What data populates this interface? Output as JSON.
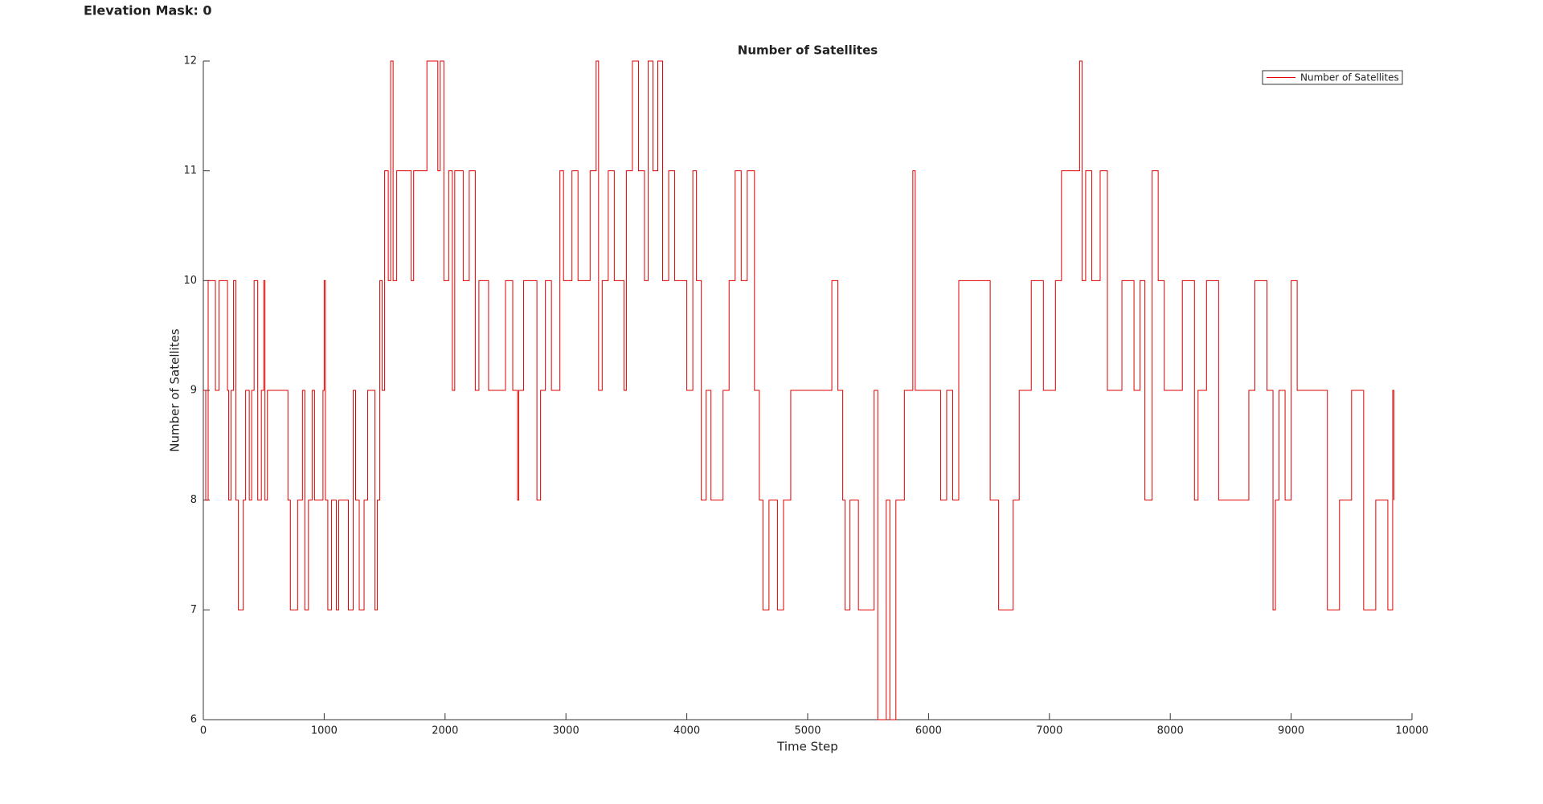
{
  "header": {
    "title": "Elevation Mask: 0"
  },
  "chart_data": {
    "type": "line",
    "title": "Number of Satellites",
    "xlabel": "Time Step",
    "ylabel": "Number of Satellites",
    "drawstyle": "steps-post",
    "legend": "upper right",
    "xlim": [
      0,
      10000
    ],
    "xticks": [
      0,
      1000,
      2000,
      3000,
      4000,
      5000,
      6000,
      7000,
      8000,
      9000,
      10000
    ],
    "ylim": [
      6,
      12
    ],
    "yticks": [
      6,
      7,
      8,
      9,
      10,
      11,
      12
    ],
    "x": [
      0,
      20,
      40,
      100,
      130,
      200,
      210,
      230,
      250,
      270,
      290,
      330,
      350,
      380,
      400,
      420,
      450,
      480,
      500,
      510,
      530,
      700,
      720,
      780,
      820,
      840,
      870,
      900,
      920,
      990,
      1000,
      1010,
      1030,
      1060,
      1100,
      1120,
      1200,
      1240,
      1260,
      1290,
      1330,
      1360,
      1420,
      1440,
      1460,
      1480,
      1500,
      1530,
      1550,
      1570,
      1600,
      1720,
      1740,
      1850,
      1940,
      1960,
      1990,
      2030,
      2060,
      2080,
      2150,
      2200,
      2250,
      2280,
      2360,
      2500,
      2560,
      2600,
      2610,
      2650,
      2760,
      2790,
      2830,
      2880,
      2950,
      2980,
      3050,
      3100,
      3200,
      3250,
      3270,
      3300,
      3350,
      3400,
      3480,
      3500,
      3550,
      3600,
      3650,
      3680,
      3720,
      3760,
      3800,
      3850,
      3900,
      4000,
      4050,
      4080,
      4120,
      4160,
      4200,
      4300,
      4350,
      4400,
      4450,
      4500,
      4560,
      4600,
      4630,
      4680,
      4750,
      4800,
      4860,
      5200,
      5250,
      5290,
      5310,
      5350,
      5420,
      5550,
      5580,
      5650,
      5680,
      5730,
      5800,
      5870,
      5890,
      6100,
      6150,
      6200,
      6250,
      6510,
      6580,
      6700,
      6750,
      6850,
      6950,
      7050,
      7100,
      7250,
      7270,
      7300,
      7350,
      7420,
      7480,
      7600,
      7700,
      7750,
      7790,
      7850,
      7900,
      7950,
      8100,
      8200,
      8230,
      8300,
      8400,
      8650,
      8700,
      8800,
      8850,
      8870,
      8900,
      8950,
      9000,
      9050,
      9300,
      9400,
      9500,
      9600,
      9700,
      9800,
      9840,
      9850
    ],
    "series": [
      {
        "name": "Number of Satellites",
        "color": "#e00000",
        "values": [
          9,
          8,
          10,
          9,
          10,
          9,
          8,
          9,
          10,
          8,
          7,
          8,
          9,
          8,
          9,
          10,
          8,
          9,
          10,
          8,
          9,
          8,
          7,
          8,
          9,
          7,
          8,
          9,
          8,
          9,
          10,
          8,
          7,
          8,
          7,
          8,
          7,
          9,
          8,
          7,
          8,
          9,
          7,
          8,
          10,
          9,
          11,
          10,
          12,
          10,
          11,
          10,
          11,
          12,
          11,
          12,
          10,
          11,
          9,
          11,
          10,
          11,
          9,
          10,
          9,
          10,
          9,
          8,
          9,
          10,
          8,
          9,
          10,
          9,
          11,
          10,
          11,
          10,
          11,
          12,
          9,
          10,
          11,
          10,
          9,
          11,
          12,
          11,
          10,
          12,
          11,
          12,
          10,
          11,
          10,
          9,
          11,
          10,
          8,
          9,
          8,
          9,
          10,
          11,
          10,
          11,
          9,
          8,
          7,
          8,
          7,
          8,
          9,
          10,
          9,
          8,
          7,
          8,
          7,
          9,
          6,
          8,
          6,
          8,
          9,
          11,
          9,
          8,
          9,
          8,
          10,
          8,
          7,
          8,
          9,
          10,
          9,
          10,
          11,
          12,
          10,
          11,
          10,
          11,
          9,
          10,
          9,
          10,
          8,
          11,
          10,
          9,
          10,
          8,
          9,
          10,
          8,
          9,
          10,
          9,
          7,
          8,
          9,
          8,
          10,
          9,
          7,
          8,
          9,
          7,
          8,
          7,
          9,
          8
        ]
      }
    ]
  }
}
